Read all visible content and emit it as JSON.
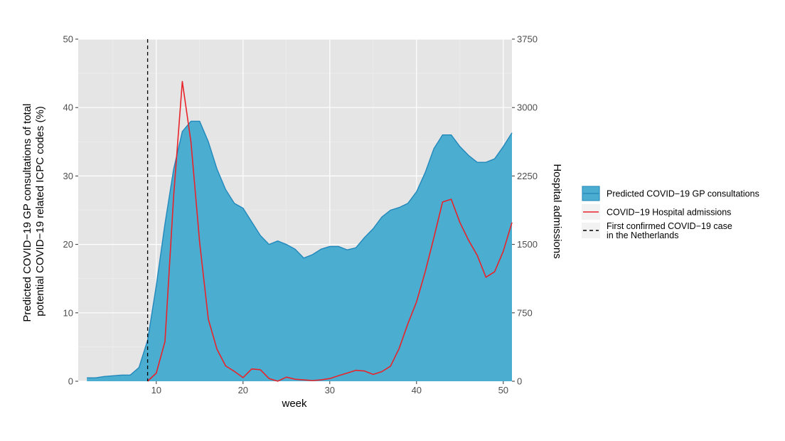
{
  "chart_data": {
    "type": "area",
    "xlabel": "week",
    "ylabel_left": [
      "Predicted COVID−19 GP consultations of total",
      "potential COVID−19 related ICPC codes (%)"
    ],
    "ylabel_right": "Hospital admissions",
    "xlim": [
      1,
      51
    ],
    "ylim_left": [
      0,
      50
    ],
    "ylim_right": [
      0,
      3750
    ],
    "x_ticks": [
      10,
      20,
      30,
      40,
      50
    ],
    "y_ticks_left": [
      0,
      10,
      20,
      30,
      40,
      50
    ],
    "y_ticks_right": [
      0,
      750,
      1500,
      2250,
      3000,
      3750
    ],
    "grid": true,
    "legend_position": "right",
    "colors": {
      "area_fill": "#4badd0",
      "area_line": "#2288bb",
      "admissions_line": "#e8232a",
      "vline": "#000000",
      "panel_bg": "#e5e5e5",
      "grid_major": "#ffffff",
      "grid_minor": "#f0f0f0"
    },
    "series": [
      {
        "name": "Predicted COVID−19 GP consultations",
        "axis": "left",
        "style": "area",
        "x": [
          2,
          3,
          4,
          5,
          6,
          7,
          8,
          9,
          10,
          11,
          12,
          13,
          14,
          15,
          16,
          17,
          18,
          19,
          20,
          21,
          22,
          23,
          24,
          25,
          26,
          27,
          28,
          29,
          30,
          31,
          32,
          33,
          34,
          35,
          36,
          37,
          38,
          39,
          40,
          41,
          42,
          43,
          44,
          45,
          46,
          47,
          48,
          49,
          50,
          51
        ],
        "values": [
          0.5,
          0.5,
          0.7,
          0.8,
          0.9,
          0.9,
          2.0,
          6.0,
          14.0,
          23.0,
          31.0,
          36.5,
          38.0,
          38.0,
          35.0,
          31.0,
          28.0,
          26.0,
          25.3,
          23.3,
          21.3,
          20.0,
          20.5,
          20.0,
          19.3,
          18.0,
          18.5,
          19.3,
          19.7,
          19.7,
          19.2,
          19.5,
          21.0,
          22.3,
          24.0,
          25.0,
          25.4,
          26.0,
          27.7,
          30.5,
          34.0,
          36.0,
          36.0,
          34.3,
          33.0,
          32.0,
          32.0,
          32.5,
          34.3,
          36.3
        ]
      },
      {
        "name": "COVID−19 Hospital admissions",
        "axis": "right",
        "style": "line",
        "x": [
          9,
          10,
          11,
          12,
          13,
          14,
          15,
          16,
          17,
          18,
          19,
          20,
          21,
          22,
          23,
          24,
          25,
          26,
          27,
          28,
          29,
          30,
          31,
          32,
          33,
          34,
          35,
          36,
          37,
          38,
          39,
          40,
          41,
          42,
          43,
          44,
          45,
          46,
          47,
          48,
          49,
          50,
          51
        ],
        "values": [
          0,
          90,
          435,
          2030,
          3285,
          2620,
          1520,
          680,
          350,
          168,
          108,
          40,
          135,
          126,
          30,
          1,
          45,
          22,
          15,
          8,
          15,
          30,
          60,
          90,
          120,
          112,
          75,
          105,
          165,
          360,
          630,
          870,
          1200,
          1575,
          1965,
          1995,
          1740,
          1545,
          1380,
          1140,
          1200,
          1425,
          1740
        ]
      }
    ],
    "vline": {
      "name": "First confirmed COVID−19 case in the Netherlands",
      "x": 9,
      "style": "dashed"
    },
    "legend": [
      {
        "key": "area",
        "label_lines": [
          "Predicted COVID−19 GP consultations"
        ]
      },
      {
        "key": "line",
        "label_lines": [
          "COVID−19 Hospital admissions"
        ]
      },
      {
        "key": "dashed",
        "label_lines": [
          "First confirmed COVID−19 case",
          "in the Netherlands"
        ]
      }
    ]
  }
}
